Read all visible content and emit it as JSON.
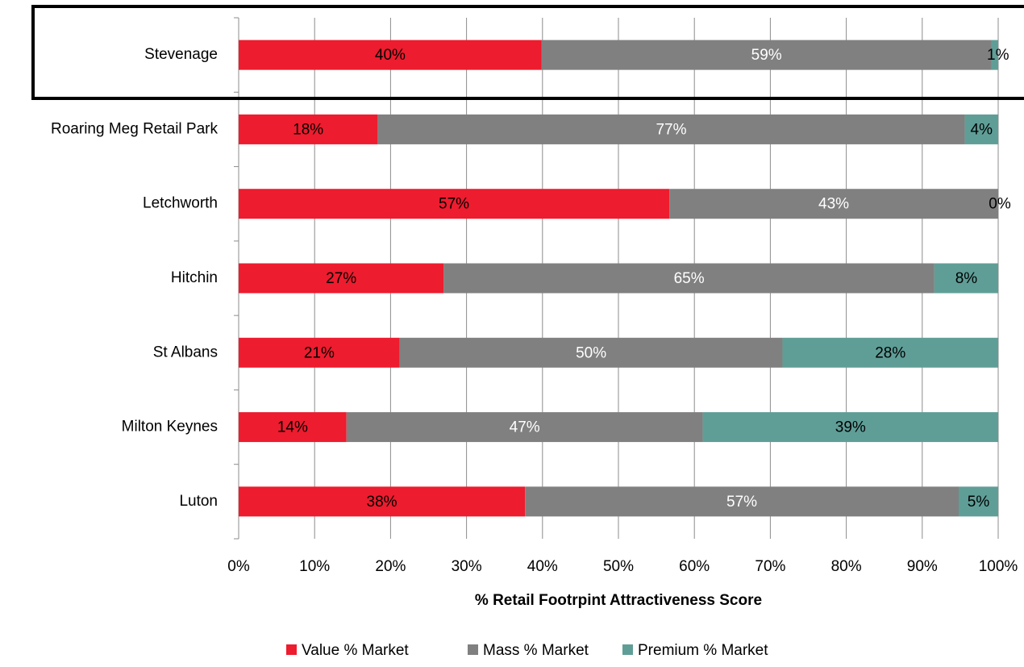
{
  "chart_data": {
    "type": "stacked_bar_horizontal",
    "categories": [
      "Stevenage",
      "Roaring Meg Retail Park",
      "Letchworth",
      "Hitchin",
      "St Albans",
      "Milton Keynes",
      "Luton"
    ],
    "series": [
      {
        "name": "Value % Market",
        "color": "#ed1c2e",
        "label_color": "#000000",
        "values": [
          39.9,
          18.3,
          56.7,
          27.0,
          21.2,
          14.2,
          37.7
        ],
        "value_labels": [
          "40%",
          "18%",
          "57%",
          "27%",
          "21%",
          "14%",
          "38%"
        ]
      },
      {
        "name": "Mass % Market",
        "color": "#808080",
        "label_color": "#ffffff",
        "values": [
          59.2,
          77.3,
          43.3,
          64.6,
          50.4,
          46.9,
          57.1
        ],
        "value_labels": [
          "59%",
          "77%",
          "43%",
          "65%",
          "50%",
          "47%",
          "57%"
        ]
      },
      {
        "name": "Premium % Market",
        "color": "#5f9e97",
        "label_color": "#000000",
        "values": [
          0.9,
          4.4,
          0,
          8.4,
          28.4,
          38.9,
          5.2
        ],
        "value_labels": [
          "1%",
          "4%",
          "0%",
          "8%",
          "28%",
          "39%",
          "5%"
        ]
      }
    ],
    "xlabel": "% Retail Footrpint Attractiveness Score",
    "xlim": [
      0,
      100
    ],
    "xticks": [
      {
        "value": 0,
        "label": "0%"
      },
      {
        "value": 10,
        "label": "10%"
      },
      {
        "value": 20,
        "label": "20%"
      },
      {
        "value": 30,
        "label": "30%"
      },
      {
        "value": 40,
        "label": "40%"
      },
      {
        "value": 50,
        "label": "50%"
      },
      {
        "value": 60,
        "label": "60%"
      },
      {
        "value": 70,
        "label": "70%"
      },
      {
        "value": 80,
        "label": "80%"
      },
      {
        "value": 90,
        "label": "90%"
      },
      {
        "value": 100,
        "label": "100%"
      }
    ],
    "grid": true,
    "legend": "bottom"
  }
}
